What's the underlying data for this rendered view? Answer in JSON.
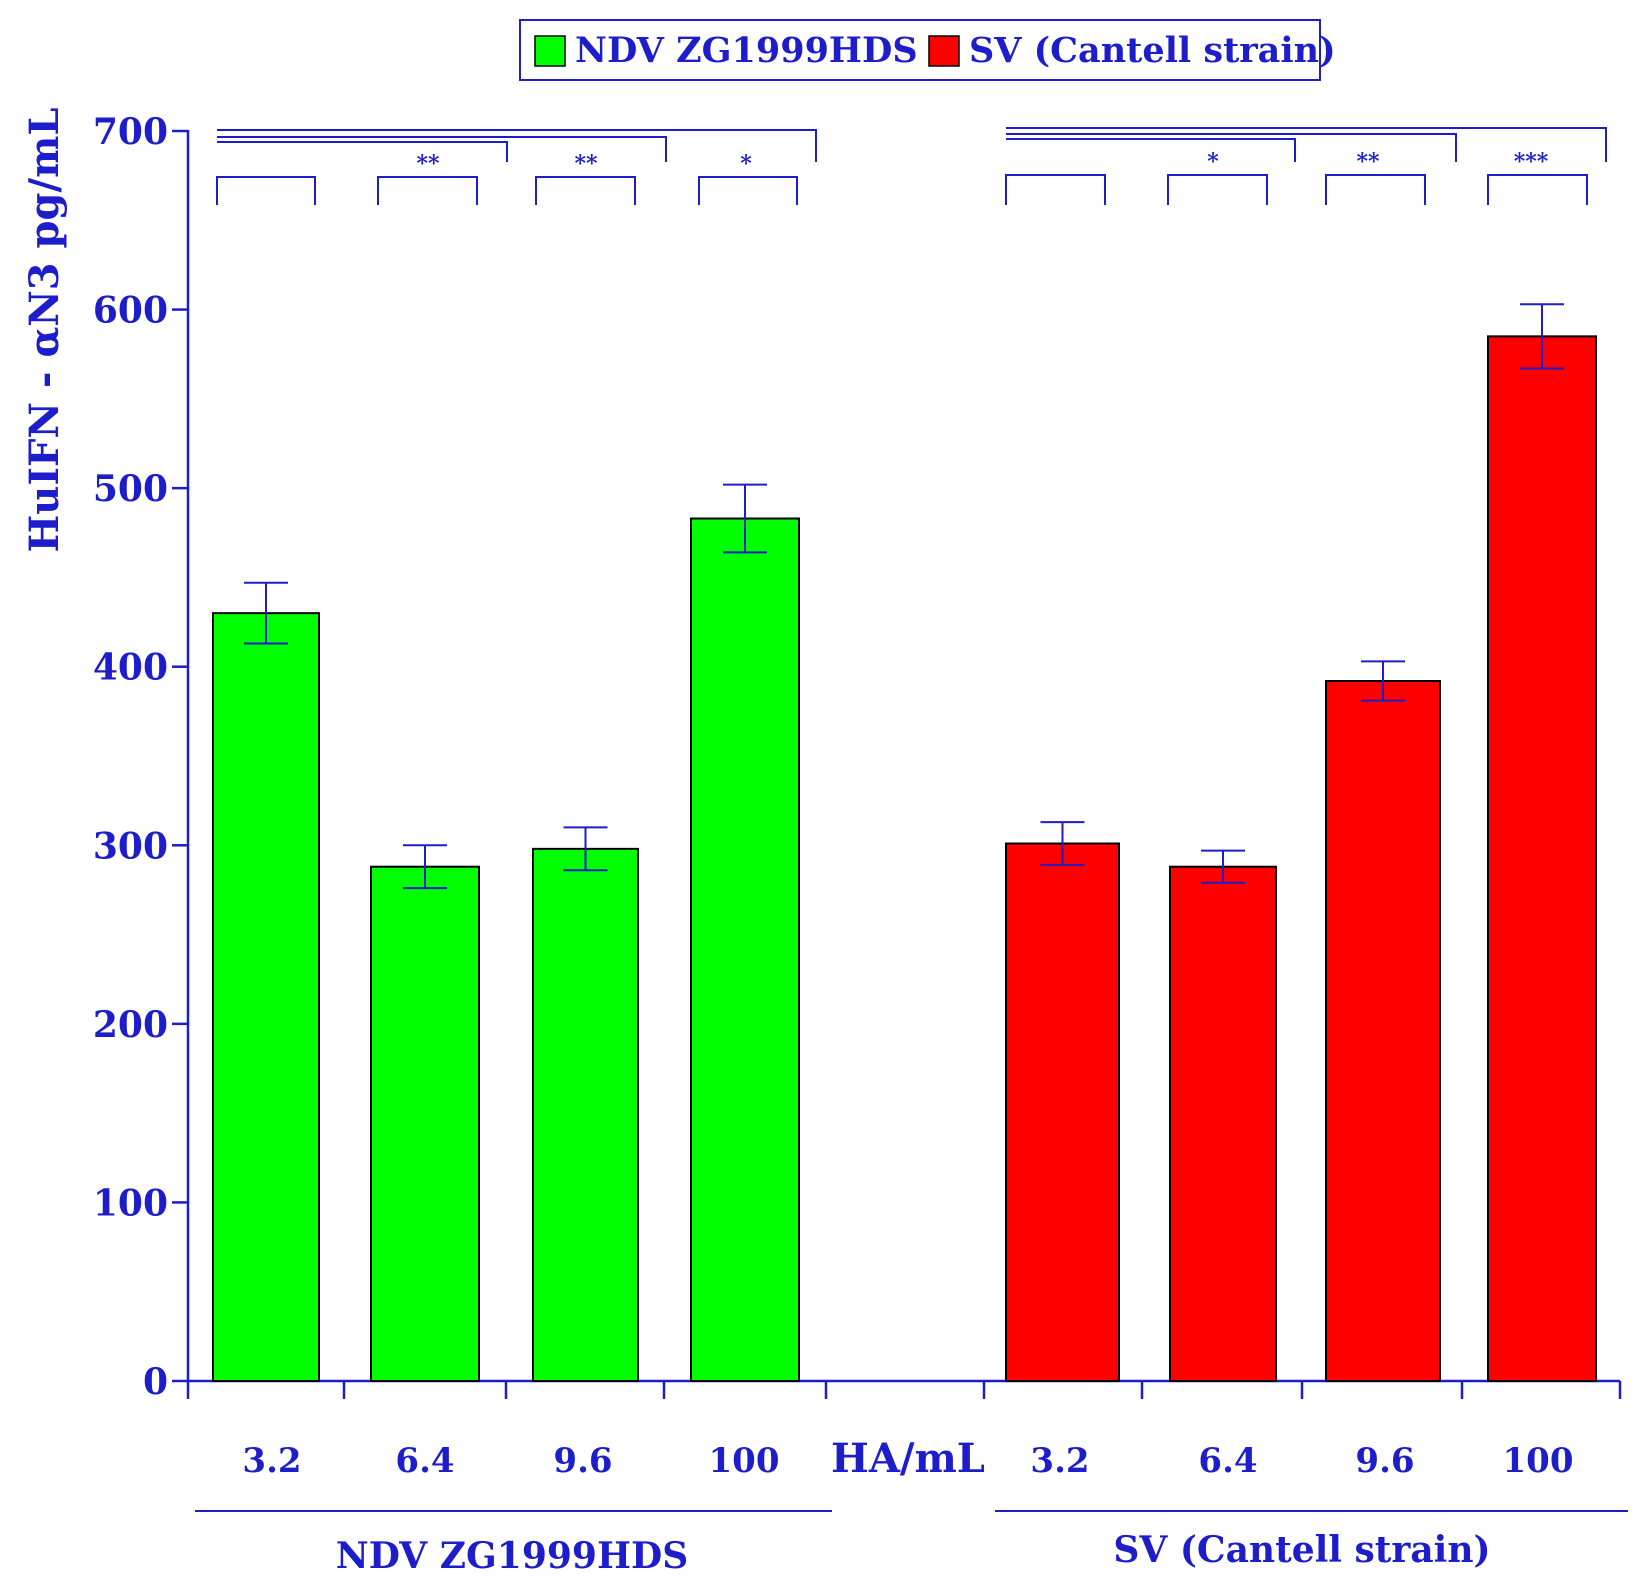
{
  "chart_data": {
    "type": "bar",
    "ylabel": "HuIFN - αN3 pg/mL",
    "xlabel": "HA/mL",
    "ylim": [
      0,
      700
    ],
    "yticks": [
      0,
      100,
      200,
      300,
      400,
      500,
      600,
      700
    ],
    "grid": false,
    "legend_position": "top-center",
    "groups": [
      {
        "name": "NDV ZG1999HDS",
        "color": "#00ff00",
        "categories": [
          "3.2",
          "6.4",
          "9.6",
          "100"
        ],
        "values": [
          430,
          288,
          298,
          483
        ],
        "errors": [
          17,
          12,
          12,
          19
        ],
        "significance": [
          "",
          "**",
          "**",
          "*"
        ]
      },
      {
        "name": "SV (Cantell strain)",
        "color": "#ff0000",
        "categories": [
          "3.2",
          "6.4",
          "9.6",
          "100"
        ],
        "values": [
          301,
          288,
          392,
          585
        ],
        "errors": [
          12,
          9,
          11,
          18
        ],
        "significance": [
          "",
          "*",
          "**",
          "***"
        ]
      }
    ]
  },
  "legend": {
    "items": [
      {
        "label": "NDV ZG1999HDS",
        "color": "#00ff00"
      },
      {
        "label": "SV (Cantell strain)",
        "color": "#ff0000"
      }
    ]
  },
  "colors": {
    "axis": "#1d1dcc",
    "bar_outline": "#000000"
  }
}
